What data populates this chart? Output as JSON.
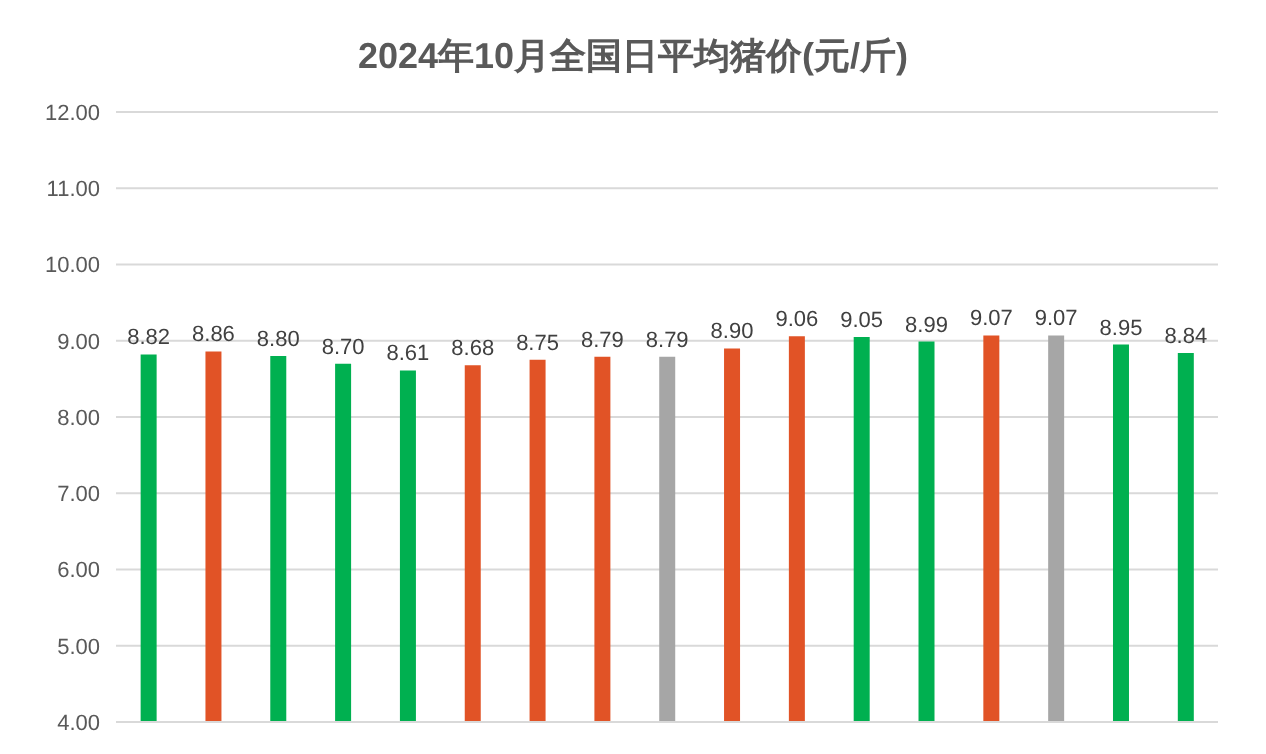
{
  "chart_data": {
    "type": "bar",
    "title": "2024年10月全国日平均猪价(元/斤)",
    "categories": [
      null,
      null,
      null,
      null,
      null,
      null,
      null,
      null,
      null,
      null,
      null,
      null,
      null,
      null,
      null,
      null,
      null
    ],
    "values": [
      8.82,
      8.86,
      8.8,
      8.7,
      8.61,
      8.68,
      8.75,
      8.79,
      8.79,
      8.9,
      9.06,
      9.05,
      8.99,
      9.07,
      9.07,
      8.95,
      8.84
    ],
    "value_labels": [
      "8.82",
      "8.86",
      "8.80",
      "8.70",
      "8.61",
      "8.68",
      "8.75",
      "8.79",
      "8.79",
      "8.90",
      "9.06",
      "9.05",
      "8.99",
      "9.07",
      "9.07",
      "8.95",
      "8.84"
    ],
    "colors": [
      "#00b050",
      "#e15326",
      "#00b050",
      "#00b050",
      "#00b050",
      "#e15326",
      "#e15326",
      "#e15326",
      "#a6a6a6",
      "#e15326",
      "#e15326",
      "#00b050",
      "#00b050",
      "#e15326",
      "#a6a6a6",
      "#00b050",
      "#00b050"
    ],
    "ylim": [
      4,
      12
    ],
    "yticks": [
      {
        "value": 4,
        "label": "4.00"
      },
      {
        "value": 5,
        "label": "5.00"
      },
      {
        "value": 6,
        "label": "6.00"
      },
      {
        "value": 7,
        "label": "7.00"
      },
      {
        "value": 8,
        "label": "8.00"
      },
      {
        "value": 9,
        "label": "9.00"
      },
      {
        "value": 10,
        "label": "10.00"
      },
      {
        "value": 11,
        "label": "11.00"
      },
      {
        "value": 12,
        "label": "12.00"
      }
    ],
    "grid": "y"
  }
}
